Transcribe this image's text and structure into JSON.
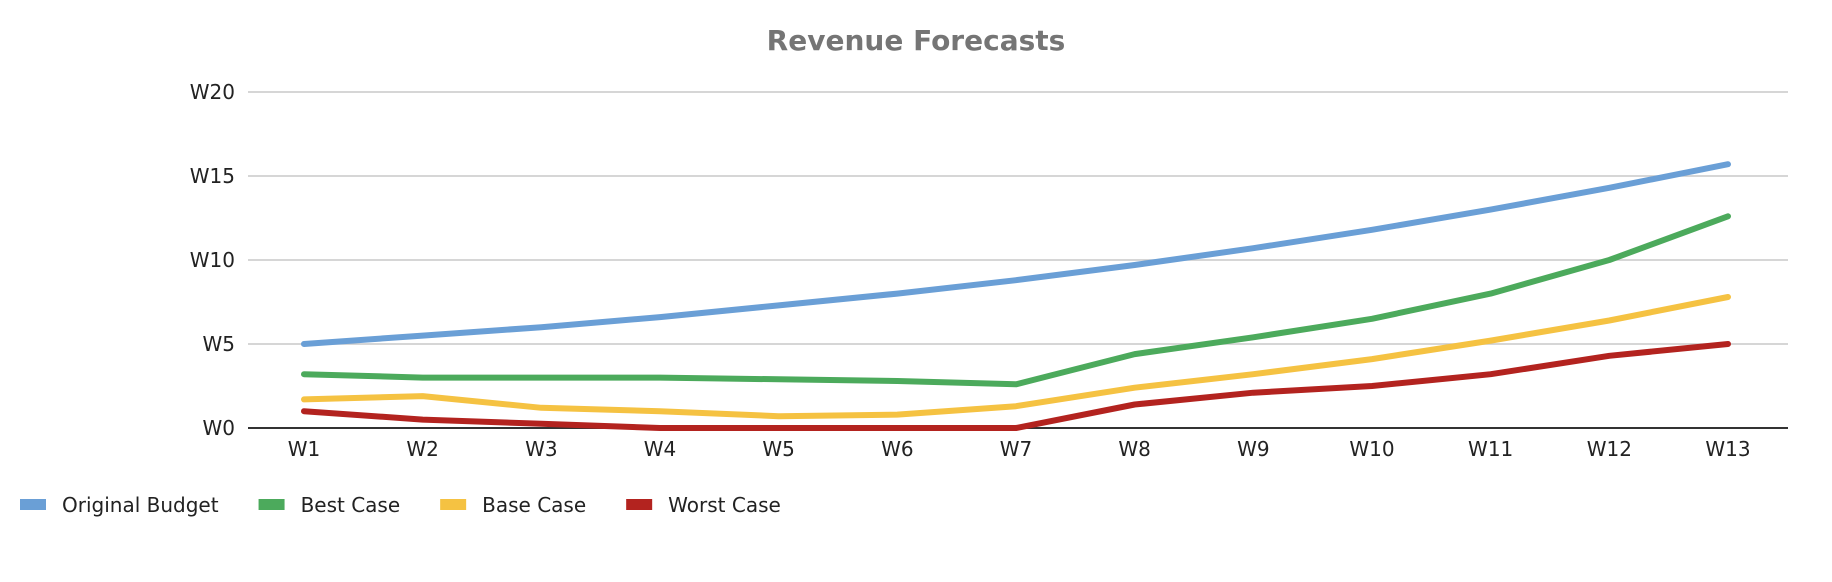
{
  "chart_data": {
    "type": "line",
    "title": "Revenue Forecasts",
    "xlabel": "",
    "ylabel": "",
    "categories": [
      "W1",
      "W2",
      "W3",
      "W4",
      "W5",
      "W6",
      "W7",
      "W8",
      "W9",
      "W10",
      "W11",
      "W12",
      "W13"
    ],
    "ylim": [
      0,
      20
    ],
    "yticks": [
      {
        "value": 0,
        "label": "W0"
      },
      {
        "value": 5,
        "label": "W5"
      },
      {
        "value": 10,
        "label": "W10"
      },
      {
        "value": 15,
        "label": "W15"
      },
      {
        "value": 20,
        "label": "W20"
      }
    ],
    "grid": true,
    "legend_position": "bottom-left",
    "series": [
      {
        "name": "Original Budget",
        "color": "#6a9fd6",
        "values": [
          5.0,
          5.5,
          6.0,
          6.6,
          7.3,
          8.0,
          8.8,
          9.7,
          10.7,
          11.8,
          13.0,
          14.3,
          15.7
        ]
      },
      {
        "name": "Best Case",
        "color": "#4caa5c",
        "values": [
          3.2,
          3.0,
          3.0,
          3.0,
          2.9,
          2.8,
          2.6,
          4.4,
          5.4,
          6.5,
          8.0,
          10.0,
          12.6
        ]
      },
      {
        "name": "Base Case",
        "color": "#f5c242",
        "values": [
          1.7,
          1.9,
          1.2,
          1.0,
          0.7,
          0.8,
          1.3,
          2.4,
          3.2,
          4.1,
          5.2,
          6.4,
          7.8
        ]
      },
      {
        "name": "Worst Case",
        "color": "#b3231f",
        "values": [
          1.0,
          0.5,
          0.25,
          0.0,
          0.0,
          0.0,
          0.0,
          1.4,
          2.1,
          2.5,
          3.2,
          4.3,
          5.0
        ]
      }
    ]
  }
}
